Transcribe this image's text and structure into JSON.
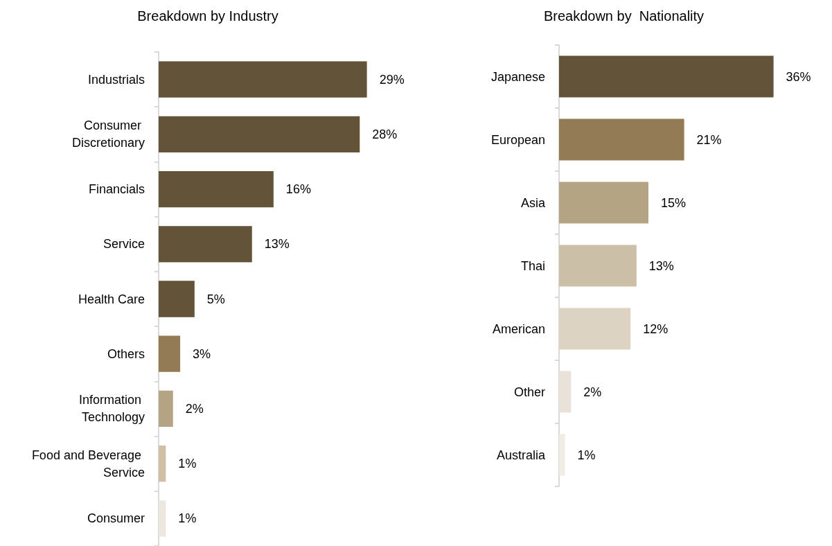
{
  "chart_data": [
    {
      "type": "bar",
      "orientation": "horizontal",
      "title": "Breakdown by Industry",
      "categories": [
        "Industrials",
        "Consumer Discretionary",
        "Financials",
        "Service",
        "Health Care",
        "Others",
        "Information Technology",
        "Food and Beverage Service",
        "Consumer"
      ],
      "values": [
        29,
        28,
        16,
        13,
        5,
        3,
        2,
        1,
        1
      ],
      "value_labels": [
        "29%",
        "28%",
        "16%",
        "13%",
        "5%",
        "3%",
        "2%",
        "1%",
        "1%"
      ],
      "colors": [
        "#625339",
        "#625339",
        "#625339",
        "#625339",
        "#625339",
        "#937c55",
        "#b5a483",
        "#cfc0a5",
        "#ece8df"
      ]
    },
    {
      "type": "bar",
      "orientation": "horizontal",
      "title": "Breakdown by  Nationality",
      "categories": [
        "Japanese",
        "European",
        "Asia",
        "Thai",
        "American",
        "Other",
        "Australia"
      ],
      "values": [
        36,
        21,
        15,
        13,
        12,
        2,
        1
      ],
      "value_labels": [
        "36%",
        "21%",
        "15%",
        "13%",
        "12%",
        "2%",
        "1%"
      ],
      "colors": [
        "#625339",
        "#937c55",
        "#b5a483",
        "#cbbfa7",
        "#dcd3c2",
        "#e8e2d8",
        "#f0ede6"
      ]
    }
  ]
}
